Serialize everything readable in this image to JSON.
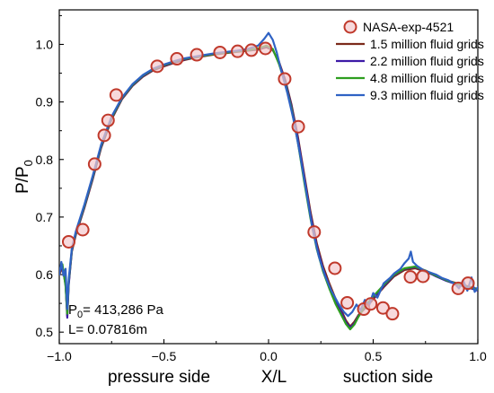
{
  "chart_data": {
    "type": "line",
    "xlabel": "X/L",
    "ylabel": {
      "main": "P/P",
      "sub": "0"
    },
    "xlim": [
      -1.0,
      1.0
    ],
    "ylim": [
      0.48,
      1.06
    ],
    "x_ticks": [
      -1.0,
      -0.5,
      0.0,
      0.5,
      1.0
    ],
    "x_tick_labels": [
      "−1.0",
      "−0.5",
      "0.0",
      "0.5",
      "1.0"
    ],
    "y_ticks": [
      0.5,
      0.6,
      0.7,
      0.8,
      0.9,
      1.0
    ],
    "y_tick_labels": [
      "0.5",
      "0.6",
      "0.7",
      "0.8",
      "0.9",
      "1.0"
    ],
    "bottom_labels": {
      "left": "pressure side",
      "right": "suction side"
    },
    "annotations": {
      "p0": {
        "main": "P",
        "sub": "0",
        "rest": "= 413,286 Pa"
      },
      "length": "L= 0.07816m"
    },
    "legend_position": "top-right",
    "experiment": {
      "name": "NASA-exp-4521",
      "color": "#c0392b",
      "fill": "#f3c9cd",
      "points": [
        [
          -0.955,
          0.657
        ],
        [
          -0.888,
          0.678
        ],
        [
          -0.831,
          0.792
        ],
        [
          -0.785,
          0.842
        ],
        [
          -0.767,
          0.868
        ],
        [
          -0.728,
          0.912
        ],
        [
          -0.532,
          0.962
        ],
        [
          -0.438,
          0.975
        ],
        [
          -0.343,
          0.982
        ],
        [
          -0.232,
          0.986
        ],
        [
          -0.148,
          0.988
        ],
        [
          -0.082,
          0.99
        ],
        [
          -0.015,
          0.993
        ],
        [
          0.077,
          0.94
        ],
        [
          0.142,
          0.857
        ],
        [
          0.218,
          0.674
        ],
        [
          0.317,
          0.611
        ],
        [
          0.376,
          0.551
        ],
        [
          0.455,
          0.54
        ],
        [
          0.488,
          0.549
        ],
        [
          0.547,
          0.542
        ],
        [
          0.592,
          0.532
        ],
        [
          0.678,
          0.596
        ],
        [
          0.738,
          0.597
        ],
        [
          0.906,
          0.576
        ],
        [
          0.953,
          0.585
        ]
      ]
    },
    "series": [
      {
        "name": "1.5 million fluid grids",
        "color": "#7b2a1a",
        "points": [
          [
            -1.0,
            0.6
          ],
          [
            -0.985,
            0.612
          ],
          [
            -0.97,
            0.585
          ],
          [
            -0.962,
            0.528
          ],
          [
            -0.955,
            0.585
          ],
          [
            -0.94,
            0.64
          ],
          [
            -0.92,
            0.67
          ],
          [
            -0.88,
            0.716
          ],
          [
            -0.84,
            0.766
          ],
          [
            -0.8,
            0.82
          ],
          [
            -0.75,
            0.87
          ],
          [
            -0.7,
            0.905
          ],
          [
            -0.65,
            0.928
          ],
          [
            -0.6,
            0.944
          ],
          [
            -0.55,
            0.955
          ],
          [
            -0.5,
            0.962
          ],
          [
            -0.45,
            0.968
          ],
          [
            -0.4,
            0.973
          ],
          [
            -0.35,
            0.977
          ],
          [
            -0.3,
            0.98
          ],
          [
            -0.25,
            0.983
          ],
          [
            -0.2,
            0.985
          ],
          [
            -0.15,
            0.987
          ],
          [
            -0.1,
            0.989
          ],
          [
            -0.05,
            0.991
          ],
          [
            -0.01,
            0.995
          ],
          [
            0.02,
            0.99
          ],
          [
            0.05,
            0.97
          ],
          [
            0.08,
            0.938
          ],
          [
            0.11,
            0.895
          ],
          [
            0.14,
            0.84
          ],
          [
            0.17,
            0.775
          ],
          [
            0.2,
            0.71
          ],
          [
            0.23,
            0.655
          ],
          [
            0.26,
            0.615
          ],
          [
            0.29,
            0.585
          ],
          [
            0.32,
            0.558
          ],
          [
            0.35,
            0.536
          ],
          [
            0.37,
            0.52
          ],
          [
            0.39,
            0.51
          ],
          [
            0.41,
            0.518
          ],
          [
            0.43,
            0.53
          ],
          [
            0.46,
            0.541
          ],
          [
            0.5,
            0.557
          ],
          [
            0.55,
            0.578
          ],
          [
            0.6,
            0.597
          ],
          [
            0.65,
            0.608
          ],
          [
            0.7,
            0.611
          ],
          [
            0.75,
            0.605
          ],
          [
            0.8,
            0.598
          ],
          [
            0.85,
            0.59
          ],
          [
            0.9,
            0.585
          ],
          [
            0.95,
            0.58
          ],
          [
            1.0,
            0.575
          ]
        ]
      },
      {
        "name": "2.2 million fluid grids",
        "color": "#3d1aa6",
        "points": [
          [
            -1.0,
            0.605
          ],
          [
            -0.985,
            0.615
          ],
          [
            -0.97,
            0.582
          ],
          [
            -0.962,
            0.525
          ],
          [
            -0.955,
            0.582
          ],
          [
            -0.94,
            0.642
          ],
          [
            -0.92,
            0.672
          ],
          [
            -0.88,
            0.718
          ],
          [
            -0.84,
            0.768
          ],
          [
            -0.8,
            0.822
          ],
          [
            -0.75,
            0.872
          ],
          [
            -0.7,
            0.906
          ],
          [
            -0.65,
            0.929
          ],
          [
            -0.6,
            0.945
          ],
          [
            -0.55,
            0.956
          ],
          [
            -0.5,
            0.963
          ],
          [
            -0.45,
            0.969
          ],
          [
            -0.4,
            0.974
          ],
          [
            -0.35,
            0.978
          ],
          [
            -0.3,
            0.981
          ],
          [
            -0.25,
            0.984
          ],
          [
            -0.2,
            0.986
          ],
          [
            -0.15,
            0.988
          ],
          [
            -0.1,
            0.99
          ],
          [
            -0.05,
            0.992
          ],
          [
            -0.01,
            0.997
          ],
          [
            0.02,
            0.991
          ],
          [
            0.05,
            0.968
          ],
          [
            0.08,
            0.936
          ],
          [
            0.11,
            0.892
          ],
          [
            0.14,
            0.836
          ],
          [
            0.17,
            0.77
          ],
          [
            0.2,
            0.704
          ],
          [
            0.23,
            0.65
          ],
          [
            0.26,
            0.61
          ],
          [
            0.29,
            0.58
          ],
          [
            0.32,
            0.553
          ],
          [
            0.35,
            0.532
          ],
          [
            0.37,
            0.517
          ],
          [
            0.39,
            0.508
          ],
          [
            0.41,
            0.515
          ],
          [
            0.43,
            0.528
          ],
          [
            0.46,
            0.543
          ],
          [
            0.5,
            0.56
          ],
          [
            0.55,
            0.58
          ],
          [
            0.6,
            0.599
          ],
          [
            0.65,
            0.61
          ],
          [
            0.7,
            0.613
          ],
          [
            0.75,
            0.606
          ],
          [
            0.8,
            0.597
          ],
          [
            0.85,
            0.589
          ],
          [
            0.9,
            0.583
          ],
          [
            0.95,
            0.578
          ],
          [
            1.0,
            0.572
          ]
        ]
      },
      {
        "name": "4.8 million fluid grids",
        "color": "#2e9e1f",
        "points": [
          [
            -1.0,
            0.608
          ],
          [
            -0.985,
            0.618
          ],
          [
            -0.97,
            0.58
          ],
          [
            -0.962,
            0.532
          ],
          [
            -0.955,
            0.588
          ],
          [
            -0.94,
            0.644
          ],
          [
            -0.92,
            0.674
          ],
          [
            -0.88,
            0.72
          ],
          [
            -0.84,
            0.77
          ],
          [
            -0.8,
            0.824
          ],
          [
            -0.75,
            0.873
          ],
          [
            -0.7,
            0.907
          ],
          [
            -0.65,
            0.93
          ],
          [
            -0.6,
            0.946
          ],
          [
            -0.55,
            0.957
          ],
          [
            -0.5,
            0.964
          ],
          [
            -0.45,
            0.97
          ],
          [
            -0.4,
            0.975
          ],
          [
            -0.35,
            0.978
          ],
          [
            -0.3,
            0.981
          ],
          [
            -0.25,
            0.984
          ],
          [
            -0.2,
            0.986
          ],
          [
            -0.15,
            0.988
          ],
          [
            -0.1,
            0.99
          ],
          [
            -0.05,
            0.993
          ],
          [
            -0.01,
            0.998
          ],
          [
            0.02,
            0.992
          ],
          [
            0.05,
            0.966
          ],
          [
            0.08,
            0.932
          ],
          [
            0.11,
            0.888
          ],
          [
            0.14,
            0.83
          ],
          [
            0.17,
            0.762
          ],
          [
            0.2,
            0.698
          ],
          [
            0.23,
            0.645
          ],
          [
            0.26,
            0.606
          ],
          [
            0.29,
            0.576
          ],
          [
            0.32,
            0.549
          ],
          [
            0.35,
            0.528
          ],
          [
            0.37,
            0.514
          ],
          [
            0.39,
            0.505
          ],
          [
            0.41,
            0.513
          ],
          [
            0.43,
            0.527
          ],
          [
            0.46,
            0.545
          ],
          [
            0.5,
            0.562
          ],
          [
            0.55,
            0.582
          ],
          [
            0.6,
            0.6
          ],
          [
            0.65,
            0.611
          ],
          [
            0.7,
            0.614
          ],
          [
            0.75,
            0.607
          ],
          [
            0.8,
            0.598
          ],
          [
            0.85,
            0.59
          ],
          [
            0.9,
            0.584
          ],
          [
            0.95,
            0.579
          ],
          [
            1.0,
            0.574
          ]
        ]
      },
      {
        "name": "9.3 million fluid grids",
        "color": "#2f62c4",
        "points": [
          [
            -1.0,
            0.6
          ],
          [
            -0.99,
            0.622
          ],
          [
            -0.98,
            0.598
          ],
          [
            -0.97,
            0.61
          ],
          [
            -0.962,
            0.54
          ],
          [
            -0.955,
            0.592
          ],
          [
            -0.94,
            0.646
          ],
          [
            -0.92,
            0.676
          ],
          [
            -0.88,
            0.722
          ],
          [
            -0.84,
            0.772
          ],
          [
            -0.8,
            0.826
          ],
          [
            -0.75,
            0.875
          ],
          [
            -0.7,
            0.908
          ],
          [
            -0.65,
            0.931
          ],
          [
            -0.6,
            0.947
          ],
          [
            -0.55,
            0.958
          ],
          [
            -0.5,
            0.965
          ],
          [
            -0.45,
            0.971
          ],
          [
            -0.4,
            0.976
          ],
          [
            -0.35,
            0.979
          ],
          [
            -0.3,
            0.982
          ],
          [
            -0.25,
            0.985
          ],
          [
            -0.2,
            0.987
          ],
          [
            -0.15,
            0.989
          ],
          [
            -0.1,
            0.992
          ],
          [
            -0.05,
            0.998
          ],
          [
            -0.02,
            1.01
          ],
          [
            0.0,
            1.02
          ],
          [
            0.02,
            1.008
          ],
          [
            0.04,
            0.985
          ],
          [
            0.06,
            0.955
          ],
          [
            0.09,
            0.915
          ],
          [
            0.12,
            0.868
          ],
          [
            0.15,
            0.81
          ],
          [
            0.18,
            0.745
          ],
          [
            0.21,
            0.68
          ],
          [
            0.24,
            0.632
          ],
          [
            0.27,
            0.598
          ],
          [
            0.3,
            0.572
          ],
          [
            0.33,
            0.552
          ],
          [
            0.36,
            0.535
          ],
          [
            0.38,
            0.528
          ],
          [
            0.4,
            0.535
          ],
          [
            0.42,
            0.548
          ],
          [
            0.44,
            0.538
          ],
          [
            0.46,
            0.556
          ],
          [
            0.48,
            0.546
          ],
          [
            0.5,
            0.568
          ],
          [
            0.52,
            0.56
          ],
          [
            0.55,
            0.585
          ],
          [
            0.58,
            0.594
          ],
          [
            0.6,
            0.602
          ],
          [
            0.63,
            0.61
          ],
          [
            0.65,
            0.62
          ],
          [
            0.67,
            0.628
          ],
          [
            0.68,
            0.64
          ],
          [
            0.69,
            0.622
          ],
          [
            0.71,
            0.615
          ],
          [
            0.74,
            0.608
          ],
          [
            0.77,
            0.604
          ],
          [
            0.8,
            0.6
          ],
          [
            0.83,
            0.594
          ],
          [
            0.86,
            0.59
          ],
          [
            0.89,
            0.584
          ],
          [
            0.91,
            0.576
          ],
          [
            0.93,
            0.59
          ],
          [
            0.95,
            0.572
          ],
          [
            0.97,
            0.595
          ],
          [
            0.985,
            0.57
          ],
          [
            1.0,
            0.578
          ]
        ]
      }
    ]
  }
}
